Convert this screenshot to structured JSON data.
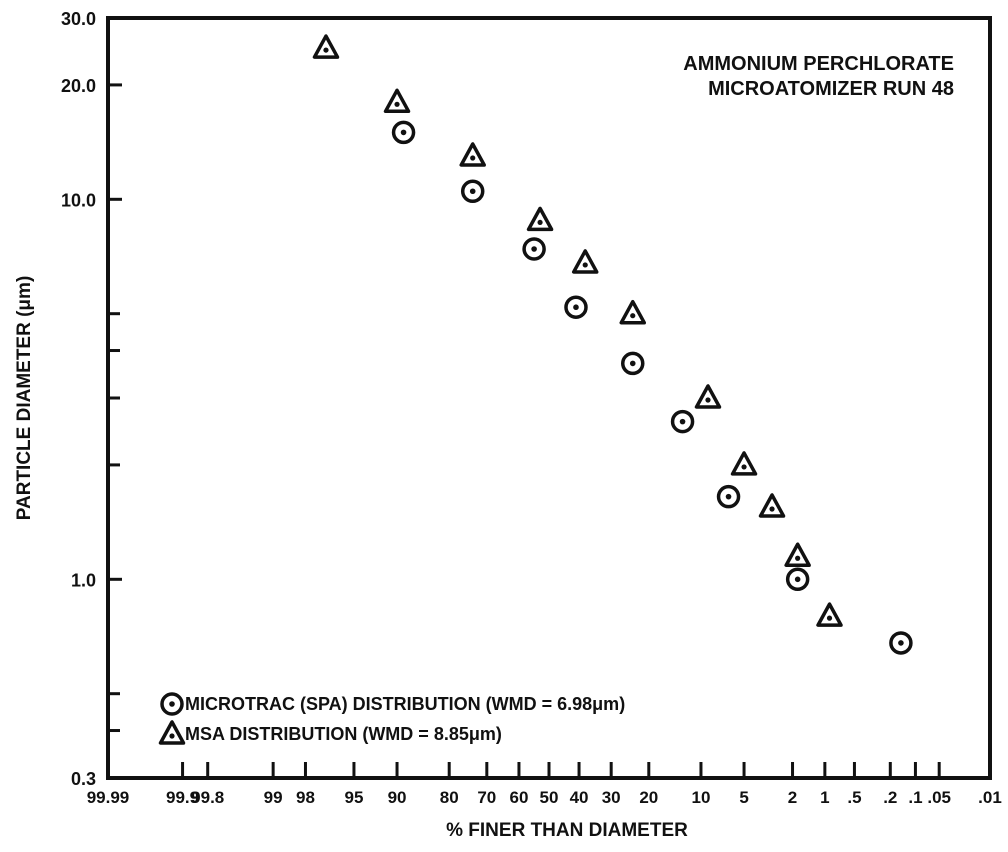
{
  "chart_data": {
    "type": "scatter",
    "title": "AMMONIUM PERCHLORATE",
    "subtitle": "MICROATOMIZER RUN 48",
    "xlabel": "% FINER THAN DIAMETER",
    "ylabel": "PARTICLE DIAMETER (μm)",
    "x_scale": "probability",
    "y_scale": "log",
    "xlim": [
      99.99,
      0.01
    ],
    "ylim": [
      0.3,
      30.0
    ],
    "grid": false,
    "legend_position": "bottom-left",
    "y_ticks": [
      0.3,
      1.0,
      10.0,
      20.0,
      30.0
    ],
    "y_tick_labels": [
      "0.3",
      "1.0",
      "10.0",
      "20.0",
      "30.0"
    ],
    "y_minor_ticks": [
      0.4,
      0.5,
      2.0,
      3.0,
      4.0,
      5.0
    ],
    "x_ticks": [
      99.99,
      99.9,
      99.8,
      99,
      98,
      95,
      90,
      80,
      70,
      60,
      50,
      40,
      30,
      20,
      10,
      5,
      2,
      1,
      0.5,
      0.2,
      0.1,
      0.05,
      0.01
    ],
    "x_tick_labels": [
      "99.99",
      "99.9",
      "99.8",
      "99",
      "98",
      "95",
      "90",
      "80",
      "70",
      "60",
      "50",
      "40",
      "30",
      "20",
      "10",
      "5",
      "2",
      "1",
      ".5",
      ".2",
      ".1",
      ".05",
      ".01"
    ],
    "series": [
      {
        "name": "MICROTRAC (",
        "legend_label": "MICROTRAC (SPA) DISTRIBUTION (WMD = 6.98μm)",
        "marker": "circle-dot",
        "x": [
          89,
          74,
          55,
          41,
          24,
          13,
          6.5,
          1.8,
          0.15
        ],
        "y": [
          15.0,
          10.5,
          7.4,
          5.2,
          3.7,
          2.6,
          1.65,
          1.0,
          0.68
        ]
      },
      {
        "name": "MSA",
        "legend_label": "MSA DISTRIBUTION (WMD = 8.85μm)",
        "marker": "triangle-dot",
        "x": [
          97,
          90,
          74,
          53,
          38,
          24,
          9,
          5,
          3,
          1.8,
          0.9
        ],
        "y": [
          25.0,
          18.0,
          13.0,
          8.8,
          6.8,
          5.0,
          3.0,
          2.0,
          1.55,
          1.15,
          0.8
        ]
      }
    ]
  }
}
